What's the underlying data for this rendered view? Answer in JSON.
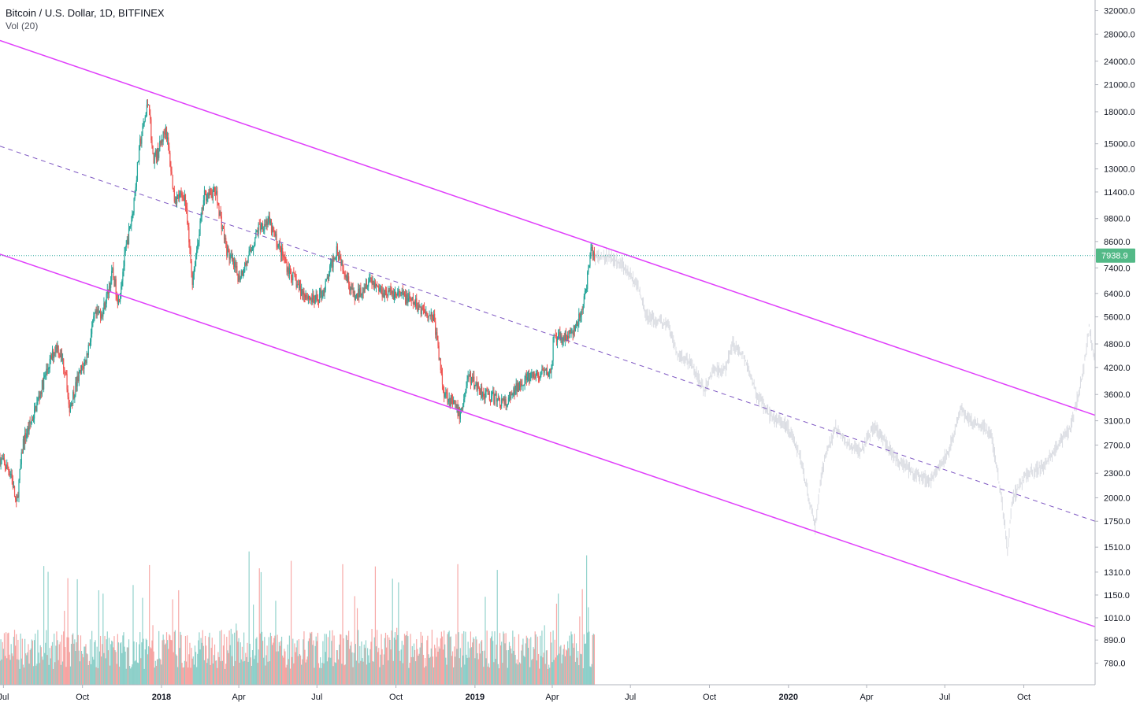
{
  "header": {
    "symbol_title": "Bitcoin / U.S. Dollar, 1D, BITFINEX",
    "volume_indicator": "Vol (20)"
  },
  "colors": {
    "up": "#26a69a",
    "down": "#ef5350",
    "channel": "#e040fb",
    "midline": "#7e57c2",
    "price_line": "#26a69a",
    "ghost": "#d1d4dc",
    "badge": "#53b987"
  },
  "chart_data": {
    "type": "candlestick",
    "title": "Bitcoin / U.S. Dollar, 1D, BITFINEX",
    "y_scale": "log",
    "ylim": [
      690,
      34000
    ],
    "y_ticks": [
      32000,
      28000,
      24000,
      21000,
      18000,
      15000,
      13000,
      11400,
      9800,
      8600,
      7400,
      6400,
      5600,
      4800,
      4200,
      3600,
      3100,
      2700,
      2300,
      2000,
      1750,
      1510,
      1310,
      1150,
      1010,
      890,
      780
    ],
    "y_tick_labels": [
      "32000.0",
      "28000.0",
      "24000.0",
      "21000.0",
      "18000.0",
      "15000.0",
      "13000.0",
      "11400.0",
      "9800.0",
      "8600.0",
      "7400.0",
      "6400.0",
      "5600.0",
      "4800.0",
      "4200.0",
      "3600.0",
      "3100.0",
      "2700.0",
      "2300.0",
      "2000.0",
      "1750.0",
      "1510.0",
      "1310.0",
      "1150.0",
      "1010.0",
      "890.0",
      "780.0"
    ],
    "x_ticks": [
      {
        "label": "Jul",
        "date": "2017-07-01",
        "bold": false
      },
      {
        "label": "Oct",
        "date": "2017-10-01",
        "bold": false
      },
      {
        "label": "2018",
        "date": "2018-01-01",
        "bold": true
      },
      {
        "label": "Apr",
        "date": "2018-04-01",
        "bold": false
      },
      {
        "label": "Jul",
        "date": "2018-07-01",
        "bold": false
      },
      {
        "label": "Oct",
        "date": "2018-10-01",
        "bold": false
      },
      {
        "label": "2019",
        "date": "2019-01-01",
        "bold": true
      },
      {
        "label": "Apr",
        "date": "2019-04-01",
        "bold": false
      },
      {
        "label": "Jul",
        "date": "2019-07-01",
        "bold": false
      },
      {
        "label": "Oct",
        "date": "2019-10-01",
        "bold": false
      },
      {
        "label": "2020",
        "date": "2020-01-01",
        "bold": true
      },
      {
        "label": "Apr",
        "date": "2020-04-01",
        "bold": false
      },
      {
        "label": "Jul",
        "date": "2020-07-01",
        "bold": false
      },
      {
        "label": "Oct",
        "date": "2020-10-01",
        "bold": false
      }
    ],
    "xlim": [
      "2017-06-27",
      "2020-12-23"
    ],
    "last_price": 7938.9,
    "last_price_label": "7938.9",
    "price_path": [
      [
        "2017-06-27",
        2500
      ],
      [
        "2017-07-10",
        2300
      ],
      [
        "2017-07-16",
        1900
      ],
      [
        "2017-07-24",
        2750
      ],
      [
        "2017-08-05",
        3200
      ],
      [
        "2017-08-20",
        4100
      ],
      [
        "2017-09-01",
        4800
      ],
      [
        "2017-09-12",
        4100
      ],
      [
        "2017-09-15",
        3300
      ],
      [
        "2017-09-25",
        3900
      ],
      [
        "2017-10-05",
        4400
      ],
      [
        "2017-10-15",
        5600
      ],
      [
        "2017-10-25",
        5800
      ],
      [
        "2017-11-05",
        7200
      ],
      [
        "2017-11-12",
        6100
      ],
      [
        "2017-11-20",
        8100
      ],
      [
        "2017-11-28",
        10000
      ],
      [
        "2017-12-07",
        15000
      ],
      [
        "2017-12-12",
        17000
      ],
      [
        "2017-12-17",
        19300
      ],
      [
        "2017-12-22",
        13800
      ],
      [
        "2017-12-28",
        14300
      ],
      [
        "2018-01-06",
        16500
      ],
      [
        "2018-01-16",
        11000
      ],
      [
        "2018-01-28",
        11200
      ],
      [
        "2018-02-06",
        6900
      ],
      [
        "2018-02-20",
        11200
      ],
      [
        "2018-03-05",
        11400
      ],
      [
        "2018-03-18",
        8200
      ],
      [
        "2018-04-01",
        7000
      ],
      [
        "2018-04-12",
        7800
      ],
      [
        "2018-04-24",
        9300
      ],
      [
        "2018-05-05",
        9700
      ],
      [
        "2018-05-28",
        7400
      ],
      [
        "2018-06-12",
        6500
      ],
      [
        "2018-06-29",
        6100
      ],
      [
        "2018-07-10",
        6600
      ],
      [
        "2018-07-24",
        8300
      ],
      [
        "2018-08-14",
        6200
      ],
      [
        "2018-08-31",
        7000
      ],
      [
        "2018-09-14",
        6500
      ],
      [
        "2018-10-10",
        6300
      ],
      [
        "2018-11-14",
        5600
      ],
      [
        "2018-11-20",
        4500
      ],
      [
        "2018-11-25",
        3700
      ],
      [
        "2018-12-15",
        3200
      ],
      [
        "2018-12-24",
        4000
      ],
      [
        "2019-01-10",
        3650
      ],
      [
        "2019-02-07",
        3400
      ],
      [
        "2019-02-24",
        3900
      ],
      [
        "2019-03-31",
        4100
      ],
      [
        "2019-04-02",
        4900
      ],
      [
        "2019-04-25",
        5100
      ],
      [
        "2019-05-05",
        5700
      ],
      [
        "2019-05-12",
        7000
      ],
      [
        "2019-05-16",
        8100
      ],
      [
        "2019-05-20",
        7938.9
      ]
    ],
    "ghost_path": [
      [
        "2019-05-20",
        7900
      ],
      [
        "2019-06-05",
        7900
      ],
      [
        "2019-06-20",
        7600
      ],
      [
        "2019-07-01",
        7100
      ],
      [
        "2019-07-10",
        6600
      ],
      [
        "2019-07-20",
        5600
      ],
      [
        "2019-08-01",
        5500
      ],
      [
        "2019-08-15",
        5300
      ],
      [
        "2019-08-25",
        4500
      ],
      [
        "2019-09-10",
        4300
      ],
      [
        "2019-09-25",
        3700
      ],
      [
        "2019-10-05",
        4100
      ],
      [
        "2019-10-20",
        4200
      ],
      [
        "2019-10-28",
        4800
      ],
      [
        "2019-11-10",
        4500
      ],
      [
        "2019-11-25",
        3600
      ],
      [
        "2019-12-10",
        3200
      ],
      [
        "2019-12-31",
        3000
      ],
      [
        "2020-01-15",
        2500
      ],
      [
        "2020-02-01",
        1700
      ],
      [
        "2020-02-10",
        2400
      ],
      [
        "2020-02-25",
        3000
      ],
      [
        "2020-03-10",
        2700
      ],
      [
        "2020-03-25",
        2600
      ],
      [
        "2020-04-10",
        3000
      ],
      [
        "2020-04-20",
        2800
      ],
      [
        "2020-05-05",
        2500
      ],
      [
        "2020-05-25",
        2300
      ],
      [
        "2020-06-15",
        2200
      ],
      [
        "2020-06-25",
        2400
      ],
      [
        "2020-07-05",
        2600
      ],
      [
        "2020-07-20",
        3300
      ],
      [
        "2020-07-30",
        3100
      ],
      [
        "2020-08-15",
        3000
      ],
      [
        "2020-08-25",
        2800
      ],
      [
        "2020-09-05",
        2000
      ],
      [
        "2020-09-12",
        1500
      ],
      [
        "2020-09-18",
        2000
      ],
      [
        "2020-10-05",
        2300
      ],
      [
        "2020-10-25",
        2400
      ],
      [
        "2020-11-10",
        2700
      ],
      [
        "2020-11-25",
        3000
      ],
      [
        "2020-12-10",
        4200
      ],
      [
        "2020-12-16",
        5300
      ],
      [
        "2020-12-22",
        4400
      ]
    ],
    "annotations": [
      {
        "type": "trendline",
        "style": "solid",
        "from": [
          "2017-06-27",
          27000
        ],
        "to": [
          "2020-12-23",
          3200
        ]
      },
      {
        "type": "trendline",
        "style": "dashed",
        "from": [
          "2017-06-27",
          14800
        ],
        "to": [
          "2020-12-23",
          1750
        ]
      },
      {
        "type": "trendline",
        "style": "solid",
        "from": [
          "2017-06-27",
          8000
        ],
        "to": [
          "2020-12-23",
          960
        ]
      },
      {
        "type": "hline",
        "style": "dotted",
        "price": 7938.9
      }
    ]
  }
}
